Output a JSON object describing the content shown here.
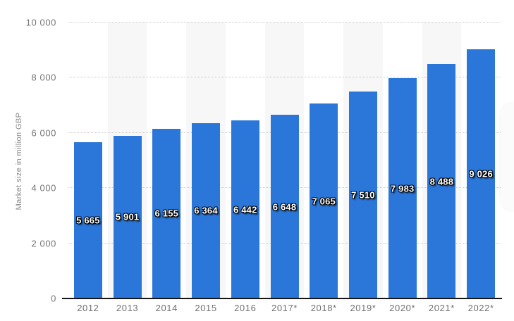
{
  "chart_data": {
    "type": "bar",
    "title": "",
    "xlabel": "",
    "ylabel": "Market size in million GBP",
    "categories": [
      "2012",
      "2013",
      "2014",
      "2015",
      "2016",
      "2017*",
      "2018*",
      "2019*",
      "2020*",
      "2021*",
      "2022*"
    ],
    "values": [
      5665,
      5901,
      6155,
      6364,
      6442,
      6648,
      7065,
      7510,
      7983,
      8488,
      9026
    ],
    "value_labels": [
      "5 665",
      "5 901",
      "6 155",
      "6 364",
      "6 442",
      "6 648",
      "7 065",
      "7 510",
      "7 983",
      "8 488",
      "9 026"
    ],
    "ylim": [
      0,
      10000
    ],
    "yticks": [
      0,
      2000,
      4000,
      6000,
      8000,
      10000
    ],
    "ytick_labels": [
      "0",
      "2 000",
      "4 000",
      "6 000",
      "8 000",
      "10 000"
    ],
    "grid": "horizontal-dotted",
    "legend": "none",
    "colors": {
      "bar": "#2b77d9",
      "column_band": "#f7f7f7",
      "gridline": "#c9c9c9",
      "axis_line": "#161616",
      "tick_label": "#757575",
      "value_label_text": "#ffffff",
      "value_label_outline": "#000000",
      "axis_title": "#8a8a8a"
    }
  }
}
